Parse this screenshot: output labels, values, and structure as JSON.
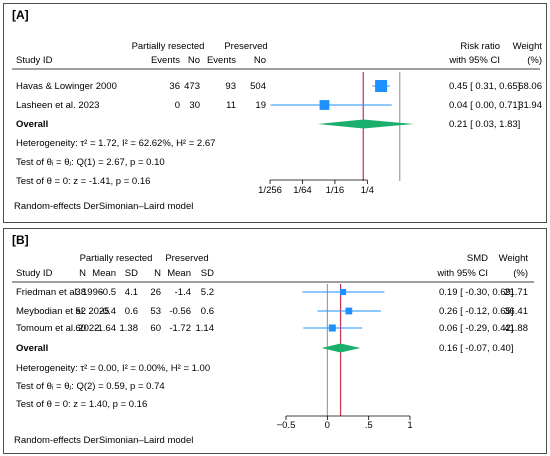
{
  "chart_data": [
    {
      "type": "forest",
      "panel_label": "[A]",
      "model_note": "Random-effects DerSimonian–Laird model",
      "header": {
        "study": "Study ID",
        "group1": "Partially resected",
        "group2": "Preserved",
        "sub1a": "Events",
        "sub1b": "No",
        "sub2a": "Events",
        "sub2b": "No",
        "effect": "Risk ratio",
        "ci": "with 95% CI",
        "weight": "Weight",
        "weight_unit": "(%)"
      },
      "x_scale": "log2",
      "xlim": [
        0.0039,
        2.0
      ],
      "xticks": [
        0.00390625,
        0.015625,
        0.0625,
        0.25
      ],
      "xtick_labels": [
        "1/256",
        "1/64",
        "1/16",
        "1/4"
      ],
      "ref_line": 1,
      "overall_line": 0.21,
      "studies": [
        {
          "name": "Havas & Lowinger 2000",
          "c1": "36",
          "c2": "473",
          "c3": "93",
          "c4": "504",
          "est": 0.45,
          "lo": 0.31,
          "hi": 0.65,
          "ci_text": "0.45 [ 0.31, 0.65]",
          "weight": "68.06"
        },
        {
          "name": "Lasheen et al. 2023",
          "c1": "0",
          "c2": "30",
          "c3": "11",
          "c4": "19",
          "est": 0.04,
          "lo": 0.004,
          "hi": 0.71,
          "ci_text": "0.04 [ 0.00, 0.71]",
          "weight": "31.94"
        }
      ],
      "overall": {
        "label": "Overall",
        "est": 0.21,
        "lo": 0.03,
        "hi": 1.83,
        "ci_text": "0.21 [ 0.03, 1.83]"
      },
      "stats": [
        "Heterogeneity: τ² = 1.72, I² = 62.62%, H² = 2.67",
        "Test of θᵢ = θⱼ: Q(1) = 2.67, p = 0.10",
        "Test of θ = 0: z = -1.41, p = 0.16"
      ]
    },
    {
      "type": "forest",
      "panel_label": "[B]",
      "model_note": "Random-effects DerSimonian–Laird model",
      "header": {
        "study": "Study ID",
        "group1": "Partially resected",
        "group2": "Preserved",
        "sub1": [
          "N",
          "Mean",
          "SD"
        ],
        "sub2": [
          "N",
          "Mean",
          "SD"
        ],
        "effect": "SMD",
        "ci": "with 95% CI",
        "weight": "Weight",
        "weight_unit": "(%)"
      },
      "x_scale": "linear",
      "xlim": [
        -0.5,
        1.0
      ],
      "xticks": [
        -0.5,
        0,
        0.5,
        1
      ],
      "xtick_labels": [
        "−0.5",
        "0",
        ".5",
        "1"
      ],
      "ref_line": 0,
      "overall_line": 0.16,
      "studies": [
        {
          "name": "Friedman et al. 1996",
          "c": [
            "38",
            "-0.5",
            "4.1",
            "26",
            "-1.4",
            "5.2"
          ],
          "est": 0.19,
          "lo": -0.3,
          "hi": 0.69,
          "ci_text": "0.19 [ -0.30, 0.69]",
          "weight": "21.71"
        },
        {
          "name": "Meybodian et al. 2025",
          "c": [
            "52",
            "-0.4",
            "0.6",
            "53",
            "-0.56",
            "0.6"
          ],
          "est": 0.26,
          "lo": -0.12,
          "hi": 0.65,
          "ci_text": "0.26 [ -0.12, 0.65]",
          "weight": "36.41"
        },
        {
          "name": "Tomoum et al. 2022",
          "c": [
            "60",
            "-1.64",
            "1.38",
            "60",
            "-1.72",
            "1.14"
          ],
          "est": 0.06,
          "lo": -0.29,
          "hi": 0.42,
          "ci_text": "0.06 [ -0.29, 0.42]",
          "weight": "41.88"
        }
      ],
      "overall": {
        "label": "Overall",
        "est": 0.16,
        "lo": -0.07,
        "hi": 0.4,
        "ci_text": "0.16 [ -0.07, 0.40]"
      },
      "stats": [
        "Heterogeneity: τ² = 0.00, I² = 0.00%, H² = 1.00",
        "Test of θᵢ = θⱼ: Q(2) = 0.59, p = 0.74",
        "Test of θ = 0: z = 1.40, p = 0.16"
      ]
    }
  ],
  "colors": {
    "marker": "#1e90ff",
    "ref_line": "#8c8c8c",
    "overall_line": "#c8324b",
    "diamond": "#1aaf6c",
    "border": "#4d4d4d"
  }
}
